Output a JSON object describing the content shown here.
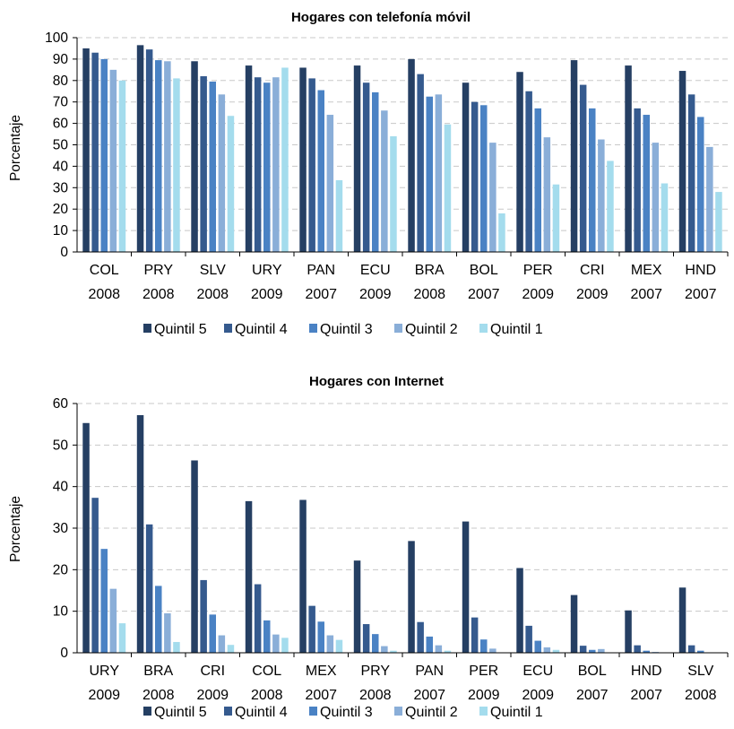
{
  "chart_data": [
    {
      "type": "bar",
      "title": "Hogares con telefonía móvil",
      "ylabel": "Porcentaje",
      "xlabel": "",
      "ylim": [
        0,
        100
      ],
      "yticks": [
        0,
        10,
        20,
        30,
        40,
        50,
        60,
        70,
        80,
        90,
        100
      ],
      "grid": true,
      "legend": "bottom",
      "categories": [
        [
          "COL",
          "2008"
        ],
        [
          "PRY",
          "2008"
        ],
        [
          "SLV",
          "2008"
        ],
        [
          "URY",
          "2009"
        ],
        [
          "PAN",
          "2007"
        ],
        [
          "ECU",
          "2009"
        ],
        [
          "BRA",
          "2008"
        ],
        [
          "BOL",
          "2007"
        ],
        [
          "PER",
          "2009"
        ],
        [
          "CRI",
          "2009"
        ],
        [
          "MEX",
          "2007"
        ],
        [
          "HND",
          "2007"
        ]
      ],
      "series": [
        {
          "name": "Quintil 5",
          "color": "#253f63",
          "values": [
            95,
            96.5,
            89,
            87,
            86,
            87,
            90,
            79,
            84,
            89.5,
            87,
            84.5
          ]
        },
        {
          "name": "Quintil 4",
          "color": "#355a8e",
          "values": [
            93,
            94.5,
            82,
            81.5,
            81,
            79,
            83,
            70,
            75,
            78,
            67,
            73.5
          ]
        },
        {
          "name": "Quintil 3",
          "color": "#4a82c4",
          "values": [
            90,
            89.5,
            79.5,
            79,
            75.5,
            74.5,
            72.5,
            68.5,
            67,
            67,
            64,
            63
          ]
        },
        {
          "name": "Quintil 2",
          "color": "#8aaed8",
          "values": [
            85,
            89,
            73.5,
            81.5,
            64,
            66,
            73.5,
            51,
            53.5,
            52.5,
            51,
            49
          ]
        },
        {
          "name": "Quintil 1",
          "color": "#a4dced",
          "values": [
            80,
            81,
            63.5,
            86,
            33.5,
            54,
            59.5,
            18,
            31.5,
            42.5,
            32,
            28
          ]
        }
      ]
    },
    {
      "type": "bar",
      "title": "Hogares con Internet",
      "ylabel": "Porcentaje",
      "xlabel": "",
      "ylim": [
        0,
        60
      ],
      "yticks": [
        0,
        10,
        20,
        30,
        40,
        50,
        60
      ],
      "grid": true,
      "legend": "bottom",
      "categories": [
        [
          "URY",
          "2009"
        ],
        [
          "BRA",
          "2008"
        ],
        [
          "CRI",
          "2009"
        ],
        [
          "COL",
          "2008"
        ],
        [
          "MEX",
          "2007"
        ],
        [
          "PRY",
          "2008"
        ],
        [
          "PAN",
          "2007"
        ],
        [
          "PER",
          "2009"
        ],
        [
          "ECU",
          "2009"
        ],
        [
          "BOL",
          "2007"
        ],
        [
          "HND",
          "2007"
        ],
        [
          "SLV",
          "2008"
        ]
      ],
      "series": [
        {
          "name": "Quintil 5",
          "color": "#253f63",
          "values": [
            55.3,
            57.2,
            46.3,
            36.5,
            36.8,
            22.2,
            26.9,
            31.6,
            20.4,
            13.9,
            10.2,
            15.7
          ]
        },
        {
          "name": "Quintil 4",
          "color": "#355a8e",
          "values": [
            37.3,
            30.9,
            17.5,
            16.5,
            11.3,
            6.9,
            7.4,
            8.5,
            6.5,
            1.7,
            1.8,
            1.8
          ]
        },
        {
          "name": "Quintil 3",
          "color": "#4a82c4",
          "values": [
            25,
            16.1,
            9.2,
            7.8,
            7.5,
            4.5,
            3.9,
            3.2,
            2.9,
            0.7,
            0.5,
            0.5
          ]
        },
        {
          "name": "Quintil 2",
          "color": "#8aaed8",
          "values": [
            15.4,
            9.5,
            4.2,
            4.4,
            4.2,
            1.6,
            1.8,
            1,
            1.3,
            0.9,
            0.2,
            0.1
          ]
        },
        {
          "name": "Quintil 1",
          "color": "#a4dced",
          "values": [
            7.1,
            2.6,
            1.9,
            3.6,
            3.1,
            0.5,
            0.5,
            0.1,
            0.7,
            0.1,
            0.1,
            0.1
          ]
        }
      ]
    }
  ]
}
